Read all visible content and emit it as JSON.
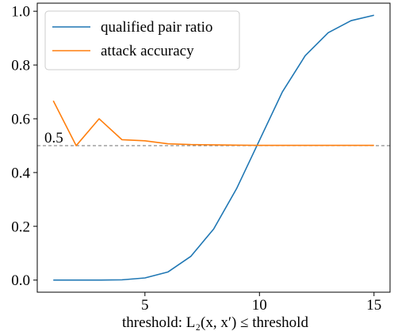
{
  "chart_data": {
    "type": "line",
    "xlabel": "threshold: L₂(x, x′) ≤  threshold",
    "ylabel": "",
    "xlim": [
      0.3,
      15.7
    ],
    "ylim": [
      -0.045,
      1.03
    ],
    "x_ticks": [
      5,
      10,
      15
    ],
    "y_ticks": [
      0.0,
      0.2,
      0.4,
      0.6,
      0.8,
      1.0
    ],
    "grid": false,
    "legend_position": "top-left",
    "series": [
      {
        "name": "qualified pair ratio",
        "color": "#1f77b4",
        "x": [
          1,
          2,
          3,
          4,
          5,
          6,
          7,
          8,
          9,
          10,
          11,
          12,
          13,
          14,
          15
        ],
        "y": [
          0.0,
          0.0,
          0.0,
          0.001,
          0.008,
          0.03,
          0.088,
          0.19,
          0.34,
          0.52,
          0.7,
          0.835,
          0.92,
          0.965,
          0.985
        ]
      },
      {
        "name": "attack accuracy",
        "color": "#ff7f0e",
        "x": [
          1,
          2,
          3,
          4,
          5,
          6,
          7,
          8,
          9,
          10,
          11,
          12,
          13,
          14,
          15
        ],
        "y": [
          0.667,
          0.5,
          0.6,
          0.522,
          0.518,
          0.507,
          0.504,
          0.503,
          0.502,
          0.501,
          0.501,
          0.501,
          0.501,
          0.501,
          0.501
        ]
      }
    ],
    "reference_line": {
      "y": 0.5,
      "label": "0.5",
      "color": "#808080",
      "style": "dashed"
    }
  }
}
